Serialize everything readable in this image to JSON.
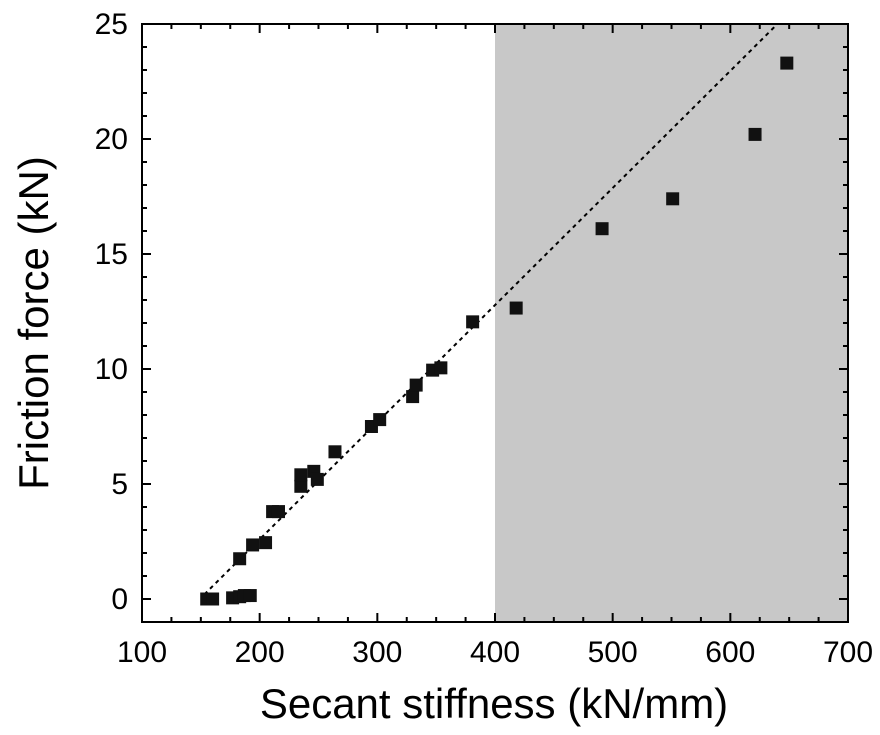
{
  "chart_data": {
    "type": "scatter",
    "xlabel": "Secant stiffness (kN/mm)",
    "ylabel": "Friction force (kN)",
    "xlim": [
      100,
      700
    ],
    "ylim": [
      -1,
      25
    ],
    "x_ticks": [
      100,
      200,
      300,
      400,
      500,
      600,
      700
    ],
    "y_ticks": [
      0,
      5,
      10,
      15,
      20,
      25
    ],
    "x_tick_labels": [
      "100",
      "200",
      "300",
      "400",
      "500",
      "600",
      "700"
    ],
    "y_tick_labels": [
      "0",
      "5",
      "10",
      "15",
      "20",
      "25"
    ],
    "grid": false,
    "shaded_region": {
      "x_from": 400,
      "x_to": 700,
      "color": "#c8c8c8"
    },
    "trend_line": {
      "style": "dotted",
      "x": [
        153,
        640
      ],
      "y": [
        0.2,
        25
      ]
    },
    "marker_color": "#111111",
    "series": [
      {
        "points": [
          {
            "x": 155,
            "y": 0.0
          },
          {
            "x": 160,
            "y": 0.0
          },
          {
            "x": 177,
            "y": 0.05
          },
          {
            "x": 183,
            "y": 0.1
          },
          {
            "x": 187,
            "y": 0.15
          },
          {
            "x": 192,
            "y": 0.15
          },
          {
            "x": 183,
            "y": 1.75
          },
          {
            "x": 194,
            "y": 2.35
          },
          {
            "x": 205,
            "y": 2.45
          },
          {
            "x": 211,
            "y": 3.8
          },
          {
            "x": 216,
            "y": 3.8
          },
          {
            "x": 235,
            "y": 4.9
          },
          {
            "x": 235,
            "y": 5.4
          },
          {
            "x": 246,
            "y": 5.55
          },
          {
            "x": 249,
            "y": 5.2
          },
          {
            "x": 264,
            "y": 6.4
          },
          {
            "x": 295,
            "y": 7.5
          },
          {
            "x": 302,
            "y": 7.8
          },
          {
            "x": 330,
            "y": 8.8
          },
          {
            "x": 333,
            "y": 9.3
          },
          {
            "x": 347,
            "y": 9.95
          },
          {
            "x": 354,
            "y": 10.05
          },
          {
            "x": 381,
            "y": 12.05
          },
          {
            "x": 418,
            "y": 12.65
          },
          {
            "x": 491,
            "y": 16.1
          },
          {
            "x": 551,
            "y": 17.4
          },
          {
            "x": 621,
            "y": 20.2
          },
          {
            "x": 648,
            "y": 23.3
          }
        ]
      }
    ]
  }
}
